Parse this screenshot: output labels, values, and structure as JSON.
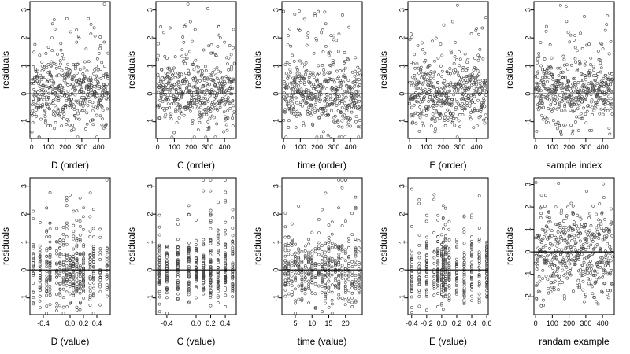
{
  "chart_data": [
    {
      "type": "scatter",
      "xlabel": "D (order)",
      "ylabel": "residuals",
      "xlim": [
        -10,
        470
      ],
      "ylim": [
        -1.6,
        3.3
      ],
      "xticks": [
        0,
        100,
        200,
        300,
        400
      ],
      "yticks": [
        -1,
        0,
        1,
        2,
        3
      ],
      "hline": 0,
      "x_kind": "index",
      "seed": 11,
      "n": 460
    },
    {
      "type": "scatter",
      "xlabel": "C (order)",
      "ylabel": "residuals",
      "xlim": [
        -10,
        470
      ],
      "ylim": [
        -1.6,
        3.3
      ],
      "xticks": [
        0,
        100,
        200,
        300,
        400
      ],
      "yticks": [
        -1,
        0,
        1,
        2,
        3
      ],
      "hline": 0,
      "x_kind": "index",
      "seed": 23,
      "n": 460
    },
    {
      "type": "scatter",
      "xlabel": "time (order)",
      "ylabel": "residuals",
      "xlim": [
        -10,
        470
      ],
      "ylim": [
        -1.6,
        3.3
      ],
      "xticks": [
        0,
        100,
        200,
        300,
        400
      ],
      "yticks": [
        -1,
        0,
        1,
        2,
        3
      ],
      "hline": 0,
      "x_kind": "index",
      "seed": 37,
      "n": 460
    },
    {
      "type": "scatter",
      "xlabel": "E (order)",
      "ylabel": "residuals",
      "xlim": [
        -10,
        470
      ],
      "ylim": [
        -1.6,
        3.3
      ],
      "xticks": [
        0,
        100,
        200,
        300,
        400
      ],
      "yticks": [
        -1,
        0,
        1,
        2,
        3
      ],
      "hline": 0,
      "x_kind": "index",
      "seed": 41,
      "n": 460
    },
    {
      "type": "scatter",
      "xlabel": "sample index",
      "ylabel": "residuals",
      "xlim": [
        -10,
        470
      ],
      "ylim": [
        -1.6,
        3.3
      ],
      "xticks": [
        0,
        100,
        200,
        300,
        400
      ],
      "yticks": [
        -1,
        0,
        1,
        2,
        3
      ],
      "hline": 0,
      "x_kind": "index",
      "seed": 53,
      "n": 460
    },
    {
      "type": "scatter",
      "xlabel": "D (value)",
      "ylabel": "residuals",
      "xlim": [
        -0.6,
        0.6
      ],
      "ylim": [
        -1.6,
        3.3
      ],
      "xticks": [
        -0.4,
        0.0,
        0.2,
        0.4
      ],
      "xticklabels": [
        "-0.4",
        "0.0",
        "0.2",
        "0.4"
      ],
      "yticks": [
        -1,
        0,
        1,
        2,
        3
      ],
      "hline": 0,
      "x_kind": "levels",
      "levels": [
        -0.55,
        -0.45,
        -0.35,
        -0.3,
        -0.2,
        -0.15,
        -0.1,
        -0.05,
        0,
        0.05,
        0.1,
        0.15,
        0.2,
        0.3,
        0.35,
        0.45,
        0.55
      ],
      "seed": 67,
      "n": 460
    },
    {
      "type": "scatter",
      "xlabel": "C (value)",
      "ylabel": "residuals",
      "xlim": [
        -0.55,
        0.55
      ],
      "ylim": [
        -1.6,
        3.3
      ],
      "xticks": [
        -0.4,
        0.0,
        0.2,
        0.4
      ],
      "xticklabels": [
        "-0.4",
        "0.0",
        "0.2",
        "0.4"
      ],
      "yticks": [
        -1,
        0,
        1,
        2,
        3
      ],
      "hline": 0,
      "x_kind": "levels",
      "levels": [
        -0.5,
        -0.4,
        -0.25,
        -0.1,
        0,
        0.1,
        0.2,
        0.3,
        0.4,
        0.5
      ],
      "seed": 71,
      "n": 460
    },
    {
      "type": "scatter",
      "xlabel": "time (value)",
      "ylabel": "residuals",
      "xlim": [
        1,
        25
      ],
      "ylim": [
        -1.6,
        3.3
      ],
      "xticks": [
        5,
        10,
        15,
        20
      ],
      "yticks": [
        -1,
        0,
        1,
        2,
        3
      ],
      "hline": 0,
      "x_kind": "levels",
      "levels": [
        2,
        3,
        4,
        5,
        6,
        7,
        8,
        9,
        10,
        11,
        12,
        13,
        14,
        15,
        16,
        17,
        18,
        19,
        20,
        21,
        22,
        23,
        24
      ],
      "seed": 79,
      "n": 460
    },
    {
      "type": "scatter",
      "xlabel": "E (value)",
      "ylabel": "residuals",
      "xlim": [
        -0.45,
        0.62
      ],
      "ylim": [
        -1.6,
        3.3
      ],
      "xticks": [
        -0.4,
        -0.2,
        0.0,
        0.2,
        0.4,
        0.6
      ],
      "xticklabels": [
        "-0.4",
        "-0.2",
        "0.0",
        "0.2",
        "0.4",
        "0.6"
      ],
      "yticks": [
        -1,
        0,
        1,
        2,
        3
      ],
      "hline": 0,
      "x_kind": "levels",
      "levels": [
        -0.4,
        -0.3,
        -0.2,
        -0.1,
        -0.05,
        0,
        0.02,
        0.05,
        0.1,
        0.2,
        0.3,
        0.4,
        0.5,
        0.6
      ],
      "seed": 83,
      "n": 460
    },
    {
      "type": "scatter",
      "xlabel": "randam example",
      "ylabel": "residuals",
      "xlim": [
        -10,
        470
      ],
      "ylim": [
        -2.8,
        3.3
      ],
      "xticks": [
        0,
        100,
        200,
        300,
        400
      ],
      "yticks": [
        -2,
        -1,
        0,
        1,
        2,
        3
      ],
      "hline": 0,
      "x_kind": "index",
      "seed": 97,
      "n": 460
    }
  ]
}
